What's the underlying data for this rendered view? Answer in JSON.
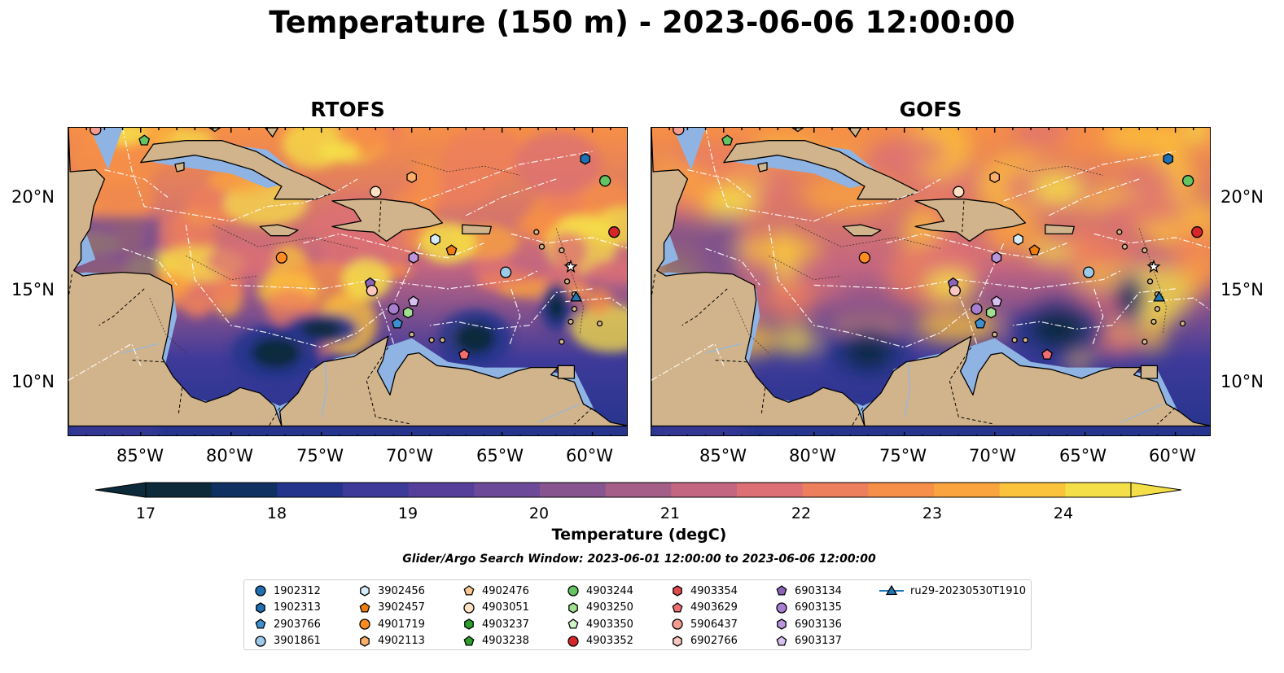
{
  "title": "Temperature (150 m) - 2023-06-06 12:00:00",
  "panels": [
    {
      "title": "RTOFS",
      "variant": "rtofs"
    },
    {
      "title": "GOFS",
      "variant": "gofs"
    }
  ],
  "lon_ticks": [
    "85°W",
    "80°W",
    "75°W",
    "70°W",
    "65°W",
    "60°W"
  ],
  "lat_ticks": [
    "20°N",
    "15°N",
    "10°N"
  ],
  "colorbar": {
    "ticks": [
      "17",
      "18",
      "19",
      "20",
      "21",
      "22",
      "23",
      "24"
    ],
    "label": "Temperature (degC)",
    "colors": [
      "#0c2a3a",
      "#0f3060",
      "#24348c",
      "#3e3a9a",
      "#553f9a",
      "#6d4a99",
      "#88548f",
      "#a55e87",
      "#c36681",
      "#dc7074",
      "#ee7f5c",
      "#f68f47",
      "#f9a43e",
      "#fbc23b",
      "#f4df48"
    ]
  },
  "search_window": "Glider/Argo Search Window: 2023-06-01 12:00:00 to 2023-06-06 12:00:00",
  "legend": [
    {
      "label": "1902312",
      "shape": "circle",
      "color": "#1f6fb4"
    },
    {
      "label": "1902313",
      "shape": "hexagon",
      "color": "#1f6fb4"
    },
    {
      "label": "2903766",
      "shape": "pentagon",
      "color": "#3e8fd0"
    },
    {
      "label": "3901861",
      "shape": "circle",
      "color": "#9ecae9"
    },
    {
      "label": "3902456",
      "shape": "hexagon",
      "color": "#d4ecfb"
    },
    {
      "label": "3902457",
      "shape": "pentagon",
      "color": "#ef7d10"
    },
    {
      "label": "4901719",
      "shape": "circle",
      "color": "#ff8c20"
    },
    {
      "label": "4902113",
      "shape": "hexagon",
      "color": "#fcae6b"
    },
    {
      "label": "4902476",
      "shape": "pentagon",
      "color": "#fdc88f"
    },
    {
      "label": "4903051",
      "shape": "circle",
      "color": "#fde1c4"
    },
    {
      "label": "4903237",
      "shape": "hexagon",
      "color": "#2ca02c"
    },
    {
      "label": "4903238",
      "shape": "pentagon",
      "color": "#2ca02c"
    },
    {
      "label": "4903244",
      "shape": "circle",
      "color": "#62c462"
    },
    {
      "label": "4903250",
      "shape": "hexagon",
      "color": "#a0e08f"
    },
    {
      "label": "4903350",
      "shape": "pentagon",
      "color": "#d0f4c8"
    },
    {
      "label": "4903352",
      "shape": "circle",
      "color": "#d62728"
    },
    {
      "label": "4903354",
      "shape": "hexagon",
      "color": "#e04a4a"
    },
    {
      "label": "4903629",
      "shape": "pentagon",
      "color": "#f26e72"
    },
    {
      "label": "5906437",
      "shape": "circle",
      "color": "#f59b8f"
    },
    {
      "label": "6902766",
      "shape": "hexagon",
      "color": "#fbc6c0"
    },
    {
      "label": "6903134",
      "shape": "pentagon",
      "color": "#8c64b8"
    },
    {
      "label": "6903135",
      "shape": "circle",
      "color": "#a77ed0"
    },
    {
      "label": "6903136",
      "shape": "hexagon",
      "color": "#bc96dc"
    },
    {
      "label": "6903137",
      "shape": "pentagon",
      "color": "#d9c0ee"
    },
    {
      "label": "ru29-20230530T1910",
      "shape": "triangle-line",
      "color": "#1f77b4"
    }
  ]
}
